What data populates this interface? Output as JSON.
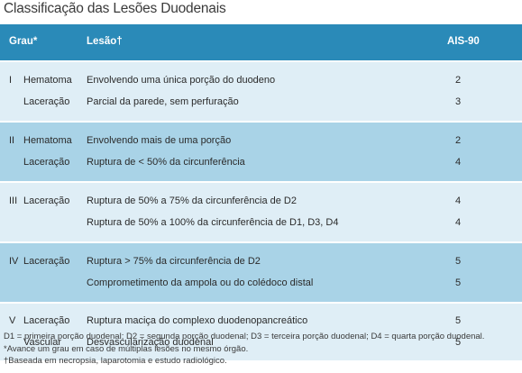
{
  "title": "Classificação das Lesões Duodenais",
  "headers": {
    "grau": "Grau*",
    "lesao": "Lesão†",
    "ais": "AIS-90"
  },
  "groups": [
    {
      "grade": "I",
      "rows": [
        {
          "type": "Hematoma",
          "desc": "Envolvendo uma única porção do duodeno",
          "ais": "2"
        },
        {
          "type": "Laceração",
          "desc": "Parcial da parede, sem perfuração",
          "ais": "3"
        }
      ]
    },
    {
      "grade": "II",
      "rows": [
        {
          "type": "Hematoma",
          "desc": "Envolvendo mais de uma porção",
          "ais": "2"
        },
        {
          "type": "Laceração",
          "desc": "Ruptura de < 50% da circunferência",
          "ais": "4"
        }
      ]
    },
    {
      "grade": "III",
      "rows": [
        {
          "type": "Laceração",
          "desc": "Ruptura de 50% a 75% da circunferência de D2",
          "ais": "4"
        },
        {
          "type": "",
          "desc": "Ruptura de 50% a 100% da circunferência de D1, D3, D4",
          "ais": "4"
        }
      ]
    },
    {
      "grade": "IV",
      "rows": [
        {
          "type": "Laceração",
          "desc": "Ruptura > 75% da circunferência de D2",
          "ais": "5"
        },
        {
          "type": "",
          "desc": "Comprometimento da ampola ou do colédoco distal",
          "ais": "5"
        }
      ]
    },
    {
      "grade": "V",
      "rows": [
        {
          "type": "Laceração",
          "desc": "Ruptura maciça do complexo duodenopancreático",
          "ais": "5"
        },
        {
          "type": "Vascular",
          "desc": "Desvascularização duodenal",
          "ais": "5"
        }
      ]
    }
  ],
  "footnotes": [
    "D1 = primeira porção duodenal; D2 = segunda porção duodenal; D3 = terceira porção duodenal; D4 = quarta porção duodenal.",
    "*Avance um grau em caso de múltiplas lesões no mesmo órgão.",
    "†Baseada em necropsia, laparotomia e estudo radiológico."
  ],
  "colors": {
    "header": "#2a8ab8",
    "row_light": "#dfeef6",
    "row_dark": "#a9d3e7"
  }
}
